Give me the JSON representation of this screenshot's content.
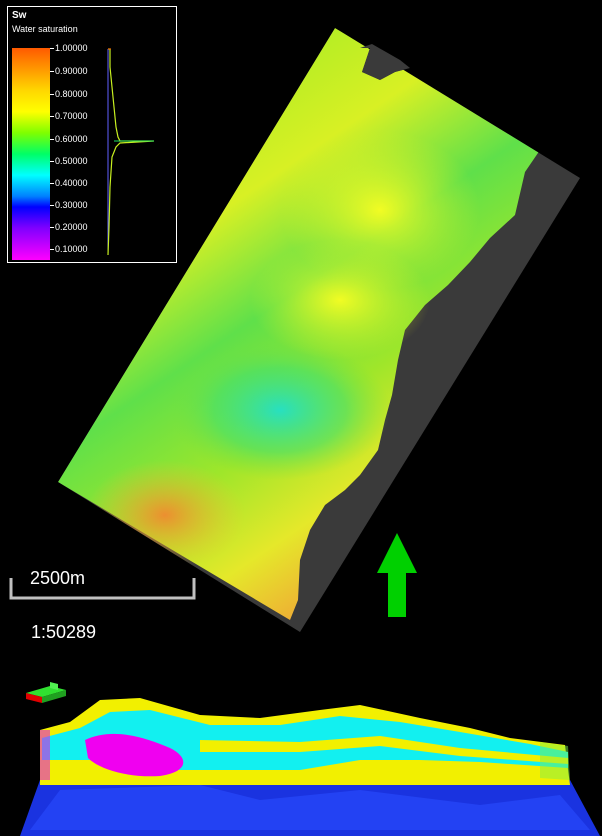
{
  "legend": {
    "property_code": "Sw",
    "property_name": "Water saturation",
    "ticks": [
      "1.00000",
      "0.90000",
      "0.80000",
      "0.70000",
      "0.60000",
      "0.50000",
      "0.40000",
      "0.30000",
      "0.20000",
      "0.10000"
    ]
  },
  "scale": {
    "distance_label": "2500m",
    "ratio_label": "1:50289"
  },
  "colors": {
    "north_arrow": "#00d000",
    "background": "#000000",
    "no_data": "#3a3a3a"
  },
  "icons": {
    "north_arrow": "arrow-up-icon",
    "compass": "orientation-compass-icon"
  }
}
